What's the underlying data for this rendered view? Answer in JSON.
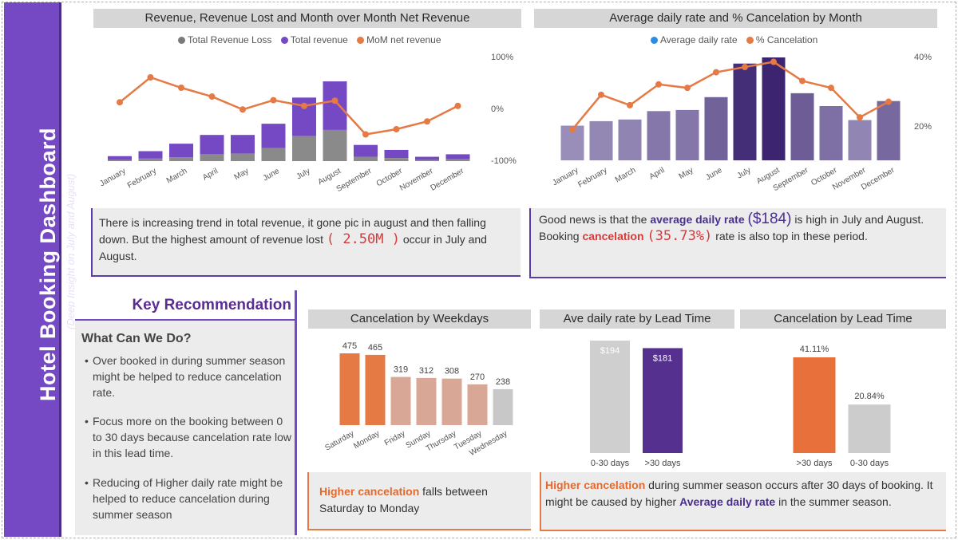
{
  "sidebar": {
    "title": "Hotel Booking Dashboard",
    "subtitle": "(Deep Insight on July and August)"
  },
  "chart1": {
    "title": "Revenue, Revenue Lost and Month over Month Net Revenue",
    "legend": [
      "Total Revenue Loss",
      "Total revenue",
      "MoM net revenue"
    ],
    "right_axis_labels": [
      "100%",
      "0%",
      "-100%"
    ]
  },
  "chart2": {
    "title": "Average daily rate and % Cancelation by Month",
    "legend": [
      "Average daily rate",
      "% Cancelation"
    ],
    "right_axis_labels": [
      "40%",
      "20%"
    ]
  },
  "chart3": {
    "title": "Cancelation by Weekdays"
  },
  "chart4": {
    "title": "Ave daily rate by Lead Time"
  },
  "chart5": {
    "title": "Cancelation by Lead Time"
  },
  "notes": {
    "revenue": {
      "part1": "There is increasing trend in total revenue, it gone pic in august and then falling down. But the highest amount of revenue lost",
      "value": "( 2.50M )",
      "part2": "occur in July and August."
    },
    "rate": {
      "part1": "Good news is that the",
      "hl1": "average daily rate",
      "value1": "($184)",
      "part2": "is high in July and August. Booking",
      "hl2": "cancelation",
      "value2": "(35.73%)",
      "part3": "rate is also top in these period."
    },
    "weekday": {
      "hl": "Higher cancelation",
      "text": "falls between Saturday to Monday"
    },
    "leadtime": {
      "hl1": "Higher cancelation",
      "part1": "during summer season occurs after 30 days of booking. It might be caused by higher",
      "hl2": "Average daily rate",
      "part2": "in the summer season."
    }
  },
  "recommendation": {
    "title": "Key Recommendation",
    "subtitle": "What Can We Do?",
    "items": [
      "Over booked in during summer season might be helped to reduce cancelation rate.",
      "Focus more on the booking between 0 to 30 days because cancelation rate low in this lead time.",
      "Reducing of Higher daily rate might be helped to reduce cancelation during summer season"
    ]
  },
  "colors": {
    "purple": "#7549c4",
    "gray": "#8a8a8a",
    "orange": "#e57a45",
    "blue": "#2b8ce6"
  },
  "chart_data": [
    {
      "type": "bar",
      "name": "revenue-by-month",
      "categories": [
        "January",
        "February",
        "March",
        "April",
        "May",
        "June",
        "July",
        "August",
        "September",
        "October",
        "November",
        "December"
      ],
      "series": [
        {
          "name": "Total Revenue Loss",
          "values": [
            0.1,
            0.2,
            0.3,
            0.55,
            0.6,
            1.05,
            2.0,
            2.5,
            0.35,
            0.25,
            0.1,
            0.15
          ]
        },
        {
          "name": "Total revenue",
          "values": [
            0.4,
            0.8,
            1.4,
            2.1,
            2.1,
            3.0,
            5.1,
            6.4,
            1.3,
            0.9,
            0.35,
            0.55
          ]
        },
        {
          "name": "MoM net revenue",
          "values": [
            12,
            60,
            40,
            23,
            -2,
            16,
            5,
            15,
            -50,
            -40,
            -25,
            5
          ],
          "axis": "right"
        }
      ],
      "yright_range": [
        -100,
        100
      ]
    },
    {
      "type": "bar",
      "name": "adr-cancel-by-month",
      "categories": [
        "January",
        "February",
        "March",
        "April",
        "May",
        "June",
        "July",
        "August",
        "September",
        "October",
        "November",
        "December"
      ],
      "series": [
        {
          "name": "Average daily rate",
          "values": [
            62,
            70,
            73,
            88,
            90,
            113,
            173,
            184,
            120,
            97,
            72,
            106
          ]
        },
        {
          "name": "% Cancelation",
          "values": [
            19,
            29,
            26,
            32,
            31,
            35.5,
            37,
            38.5,
            33,
            31,
            22.5,
            27
          ],
          "axis": "right"
        }
      ],
      "yright_ticks": [
        20,
        40
      ]
    },
    {
      "type": "bar",
      "name": "cancelation-by-weekday",
      "categories": [
        "Saturday",
        "Monday",
        "Friday",
        "Sunday",
        "Thursday",
        "Tuesday",
        "Wednesday"
      ],
      "values": [
        475,
        465,
        319,
        312,
        308,
        270,
        238
      ],
      "labels": [
        "475",
        "465",
        "319",
        "312",
        "308",
        "270",
        "238"
      ]
    },
    {
      "type": "bar",
      "name": "adr-by-lead-time",
      "categories": [
        "0-30 days",
        ">30 days"
      ],
      "values": [
        194,
        181
      ],
      "labels": [
        "$194",
        "$181"
      ]
    },
    {
      "type": "bar",
      "name": "cancel-by-lead-time",
      "categories": [
        ">30 days",
        "0-30 days"
      ],
      "values": [
        41.11,
        20.84
      ],
      "labels": [
        "41.11%",
        "20.84%"
      ]
    }
  ]
}
